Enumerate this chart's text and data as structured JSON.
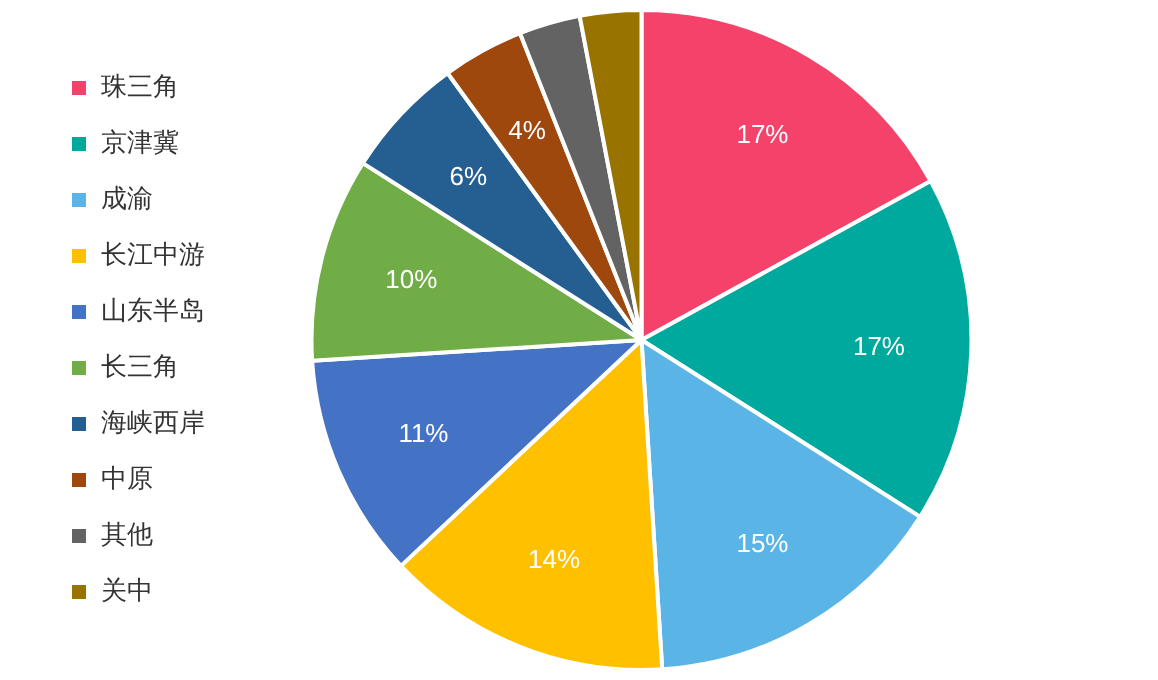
{
  "chart_data": {
    "type": "pie",
    "categories": [
      "珠三角",
      "京津冀",
      "成渝",
      "长江中游",
      "山东半岛",
      "长三角",
      "海峡西岸",
      "中原",
      "其他",
      "关中"
    ],
    "values": [
      17,
      17,
      15,
      14,
      11,
      10,
      6,
      4,
      3,
      3
    ],
    "value_labels": [
      "17%",
      "17%",
      "15%",
      "14%",
      "11%",
      "10%",
      "6%",
      "4%",
      null,
      null
    ],
    "colors": [
      "#f5426a",
      "#00a99d",
      "#5ab4e6",
      "#ffc000",
      "#4472c4",
      "#70ad47",
      "#255e91",
      "#9e480e",
      "#636363",
      "#997300"
    ],
    "legend": "left"
  }
}
